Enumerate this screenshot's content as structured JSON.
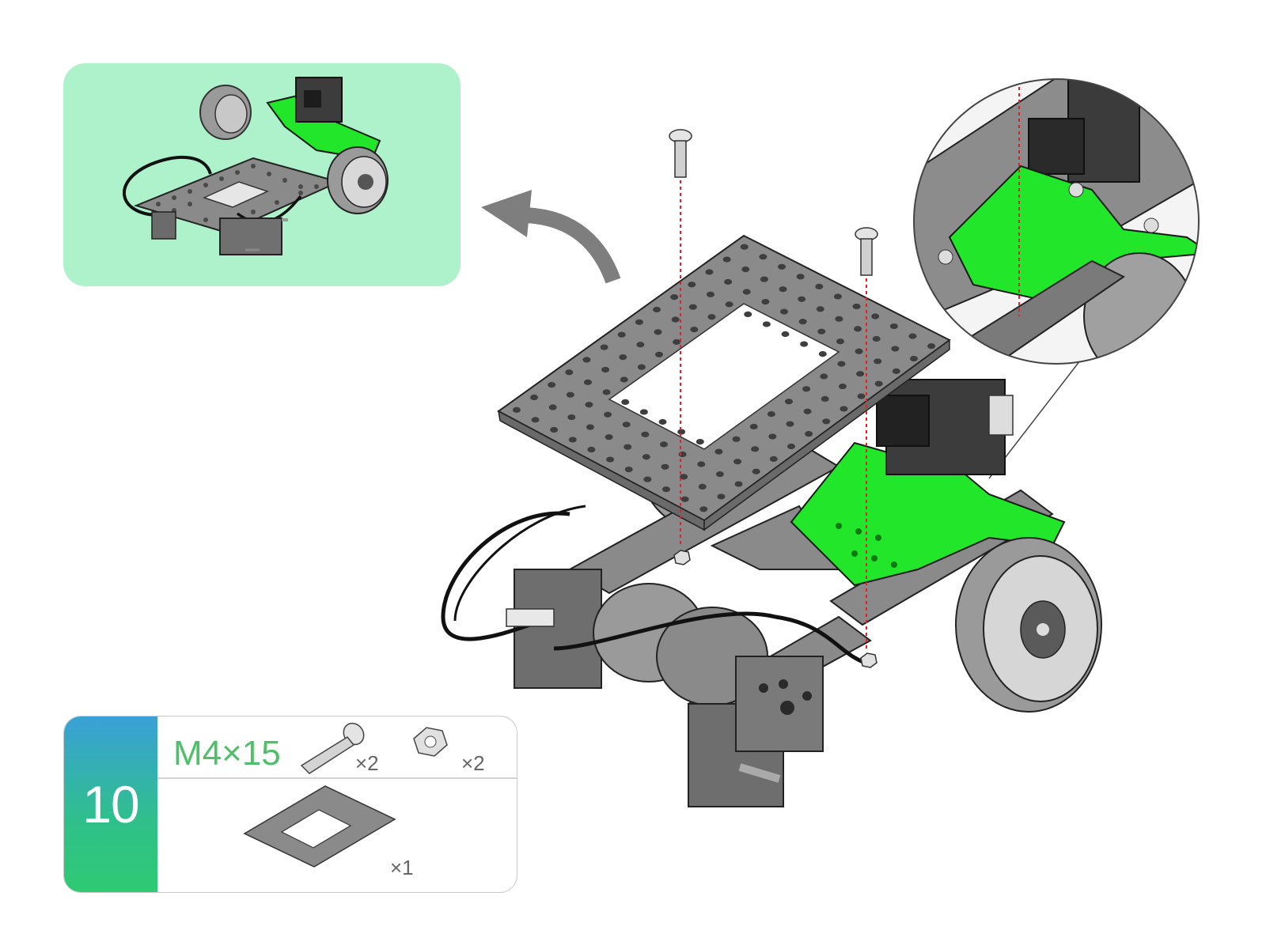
{
  "step": {
    "number": "10"
  },
  "parts": {
    "screw": {
      "name": "M4×15",
      "qty": "×2"
    },
    "nut": {
      "qty": "×2"
    },
    "plate": {
      "qty": "×1"
    }
  },
  "colors": {
    "preview_bg": "#aef2cc",
    "bracket_green": "#22e62a",
    "plate_gray": "#8c8c8c",
    "guide_red": "#e0202a",
    "step_gradient_top": "#3aa0d8",
    "step_gradient_bottom": "#2fca73"
  },
  "icons": [
    "flip-arrow-icon",
    "screw-icon",
    "nut-icon",
    "plate-icon",
    "magnifier-callout"
  ]
}
